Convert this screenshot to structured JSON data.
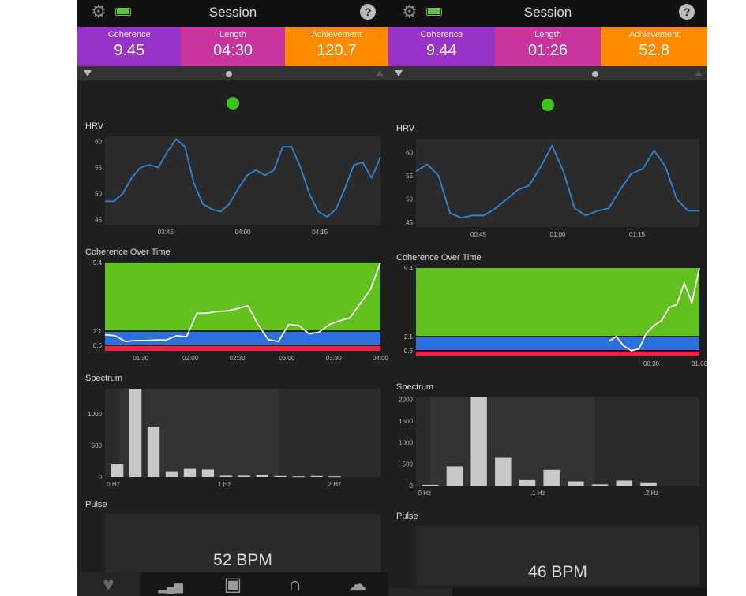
{
  "panels": [
    {
      "title": "Session",
      "metrics": [
        {
          "label": "Coherence",
          "value": "9.45",
          "color": "#9932c8"
        },
        {
          "label": "Length",
          "value": "04:30",
          "color": "#c9359d"
        },
        {
          "label": "Achievement",
          "value": "120.7",
          "color": "#ff8a00"
        }
      ],
      "sections": {
        "hrv": "HRV",
        "coherence": "Coherence Over Time",
        "spectrum": "Spectrum",
        "pulse": "Pulse"
      },
      "pulse_text": "52 BPM",
      "icons": {
        "settings": "gear-icon",
        "battery": "battery-icon",
        "help": "help-icon"
      }
    },
    {
      "title": "Session",
      "metrics": [
        {
          "label": "Coherence",
          "value": "9.44",
          "color": "#9932c8"
        },
        {
          "label": "Length",
          "value": "01:26",
          "color": "#c9359d"
        },
        {
          "label": "Achievement",
          "value": "52.8",
          "color": "#ff8a00"
        }
      ],
      "sections": {
        "hrv": "HRV",
        "coherence": "Coherence Over Time",
        "spectrum": "Spectrum",
        "pulse": "Pulse"
      },
      "pulse_text": "46 BPM",
      "icons": {
        "settings": "gear-icon",
        "battery": "battery-icon",
        "help": "help-icon"
      }
    }
  ],
  "tabs": [
    {
      "name": "heart-icon",
      "glyph": "♥"
    },
    {
      "name": "bar-chart-icon",
      "glyph": "▂▄▆"
    },
    {
      "name": "journal-icon",
      "glyph": "▣"
    },
    {
      "name": "headphones-icon",
      "glyph": "∩"
    },
    {
      "name": "cloud-heart-icon",
      "glyph": "☁"
    }
  ],
  "chart_data": [
    {
      "type": "line",
      "panel": 0,
      "title": "HRV",
      "x_ticks": [
        "03:45",
        "04:00",
        "04:15"
      ],
      "y_ticks": [
        45,
        50,
        55,
        60
      ],
      "ylim": [
        44,
        61
      ],
      "series": [
        {
          "values": [
            48.5,
            48.5,
            50,
            53,
            55,
            55.5,
            55,
            58,
            60.5,
            59,
            52,
            48,
            47,
            46.5,
            48,
            51,
            53.5,
            54.5,
            53.5,
            54.5,
            59,
            59,
            55,
            50,
            46.5,
            45.5,
            47,
            51,
            55.5,
            56,
            53,
            57
          ]
        }
      ],
      "colors": {
        "line": "#2e87d4"
      }
    },
    {
      "type": "line",
      "panel": 0,
      "title": "Coherence Over Time",
      "x_ticks": [
        "01:30",
        "02:00",
        "02:30",
        "03:00",
        "03:30",
        "04:00"
      ],
      "y_ticks": [
        0.6,
        2.1,
        9.4
      ],
      "ylim": [
        0,
        9.4
      ],
      "bands": [
        {
          "from": 0,
          "to": 0.6,
          "color": "#ee2244"
        },
        {
          "from": 0.6,
          "to": 2.1,
          "color": "#2e6fe0"
        },
        {
          "from": 2.1,
          "to": 9.4,
          "color": "#62c11e"
        }
      ],
      "series": [
        {
          "values": [
            1.7,
            1.6,
            1.0,
            1.1,
            1.1,
            1.15,
            1.15,
            1.6,
            1.5,
            4.0,
            4.0,
            4.2,
            4.25,
            4.5,
            4.8,
            2.8,
            1.2,
            1.0,
            2.8,
            2.7,
            1.8,
            2.0,
            2.8,
            3.2,
            3.5,
            5.0,
            6.5,
            9.4
          ]
        }
      ],
      "colors": {
        "line": "#ffffff"
      }
    },
    {
      "type": "bar",
      "panel": 0,
      "title": "Spectrum",
      "x_ticks": [
        "0 Hz",
        ".1 Hz",
        ".2 Hz"
      ],
      "y_ticks": [
        0,
        500,
        1000
      ],
      "ylim": [
        0,
        1400
      ],
      "values": [
        200,
        1400,
        800,
        80,
        130,
        120,
        20,
        20,
        30,
        15,
        10,
        15,
        10
      ],
      "colors": {
        "bar": "#c8c8c8"
      }
    },
    {
      "type": "line",
      "panel": 1,
      "title": "HRV",
      "x_ticks": [
        "00:45",
        "01:00",
        "01:15"
      ],
      "y_ticks": [
        45,
        50,
        55,
        60
      ],
      "ylim": [
        44,
        63
      ],
      "series": [
        {
          "values": [
            56,
            57.5,
            55,
            47,
            46,
            46.5,
            46.5,
            48,
            50,
            52,
            53,
            57,
            61.5,
            56,
            48,
            46.5,
            47.5,
            48,
            52,
            55.5,
            56.5,
            60.5,
            57,
            50,
            47.5,
            47.5
          ]
        }
      ],
      "colors": {
        "line": "#2e87d4"
      }
    },
    {
      "type": "line",
      "panel": 1,
      "title": "Coherence Over Time",
      "x_ticks": [
        "00:30",
        "01:00"
      ],
      "y_ticks": [
        0.6,
        2.1,
        9.4
      ],
      "ylim": [
        0,
        9.4
      ],
      "bands": [
        {
          "from": 0,
          "to": 0.6,
          "color": "#ee2244"
        },
        {
          "from": 0.6,
          "to": 2.1,
          "color": "#2e6fe0"
        },
        {
          "from": 2.1,
          "to": 9.4,
          "color": "#62c11e"
        }
      ],
      "series": [
        {
          "values": [
            1.6,
            2.1,
            1.1,
            0.6,
            0.8,
            2.5,
            3.3,
            3.8,
            5.2,
            5.5,
            7.8,
            5.7,
            9.4
          ]
        }
      ],
      "colors": {
        "line": "#ffffff"
      }
    },
    {
      "type": "bar",
      "panel": 1,
      "title": "Spectrum",
      "x_ticks": [
        "0 Hz",
        ".1 Hz",
        ".2 Hz"
      ],
      "y_ticks": [
        0,
        500,
        1000,
        1500,
        2000
      ],
      "ylim": [
        0,
        2050
      ],
      "values": [
        20,
        450,
        2050,
        650,
        130,
        370,
        100,
        30,
        120,
        60
      ],
      "colors": {
        "bar": "#c8c8c8"
      }
    }
  ]
}
